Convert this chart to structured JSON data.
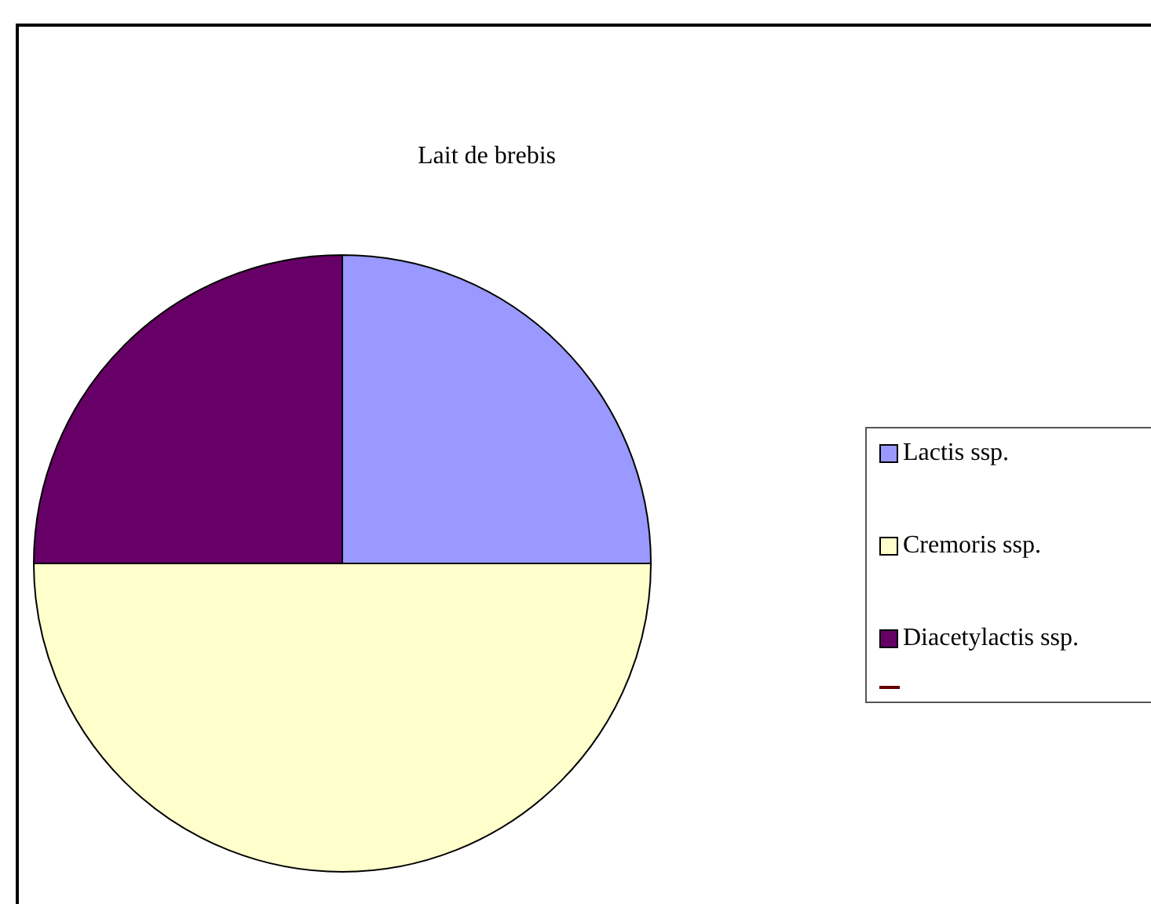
{
  "chart_data": {
    "type": "pie",
    "title": "Lait de brebis",
    "categories": [
      "Lactis ssp.",
      "Cremoris ssp.",
      "Diacetylactis ssp."
    ],
    "values": [
      25,
      50,
      25
    ],
    "colors": [
      "#9999ff",
      "#ffffcc",
      "#660066"
    ],
    "legend": "right"
  }
}
